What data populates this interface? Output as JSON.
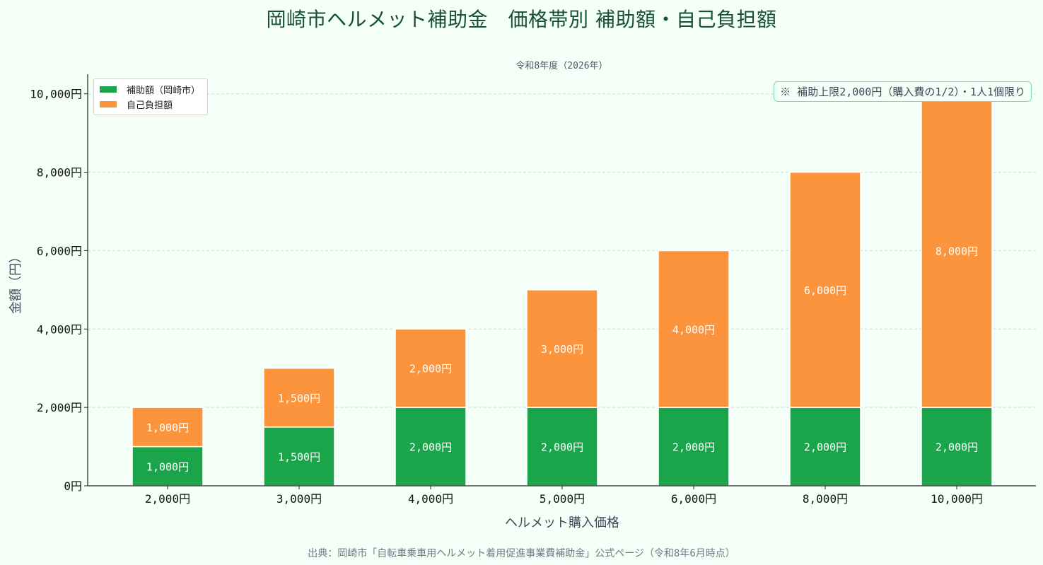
{
  "title": "岡崎市ヘルメット補助金　価格帯別 補助額・自己負担額",
  "subtitle": "令和8年度（2026年）",
  "note": "※ 補助上限2,000円（購入費の1/2）・1人1個限り",
  "source": "出典：岡崎市「自転車乗車用ヘルメット着用促進事業費補助金」公式ページ（令和8年6月時点）",
  "legend": {
    "subsidy": "補助額（岡崎市）",
    "self_pay": "自己負担額"
  },
  "colors": {
    "subsidy": "#1ba54b",
    "self_pay": "#fb943d",
    "background": "#f4fff8",
    "grid": "#c9dcd4",
    "title": "#17503a"
  },
  "chart_data": {
    "type": "bar",
    "stacked": true,
    "categories": [
      "2,000円",
      "3,000円",
      "4,000円",
      "5,000円",
      "6,000円",
      "8,000円",
      "10,000円"
    ],
    "series": [
      {
        "name": "補助額（岡崎市）",
        "values": [
          1000,
          1500,
          2000,
          2000,
          2000,
          2000,
          2000
        ],
        "labels": [
          "1,000円",
          "1,500円",
          "2,000円",
          "2,000円",
          "2,000円",
          "2,000円",
          "2,000円"
        ]
      },
      {
        "name": "自己負担額",
        "values": [
          1000,
          1500,
          2000,
          3000,
          4000,
          6000,
          8000
        ],
        "labels": [
          "1,000円",
          "1,500円",
          "2,000円",
          "3,000円",
          "4,000円",
          "6,000円",
          "8,000円"
        ]
      }
    ],
    "xlabel": "ヘルメット購入価格",
    "ylabel": "金額（円）",
    "ylim": [
      0,
      10500
    ],
    "yticks": [
      0,
      2000,
      4000,
      6000,
      8000,
      10000
    ],
    "ytick_labels": [
      "0円",
      "2,000円",
      "4,000円",
      "6,000円",
      "8,000円",
      "10,000円"
    ],
    "grid": true,
    "legend_position": "top-left"
  }
}
